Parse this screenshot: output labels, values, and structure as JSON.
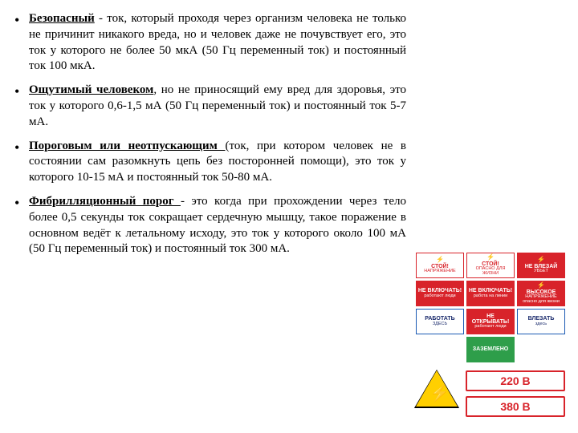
{
  "items": [
    {
      "term": "Безопасный",
      "rest": " - ток, который проходя через организм человека не только не причинит никакого вреда, но и человек даже не почувствует его, это ток у которого не более 50 мкА (50 Гц переменный ток) и постоянный ток 100 мкА."
    },
    {
      "term": "Ощутимый человеком",
      "rest": ", но не приносящий ему вред для здоровья, это ток у которого 0,6-1,5 мА (50 Гц переменный ток) и постоянный ток 5-7 мА."
    },
    {
      "term": "Пороговым или неотпускающим ",
      "rest": "(ток, при котором человек не в состоянии сам разомкнуть цепь без посторонней помощи), это ток у которого 10-15 мА и постоянный ток 50-80 мА."
    },
    {
      "term": "Фибрилляционный порог ",
      "rest": "- это когда при прохождении через тело более 0,5 секунды ток сокращает сердечную мышцу, такое поражение в основном ведёт к летальному исходу, это ток у которого около 100 мА (50 Гц переменный ток) и постоянный ток 300 мА."
    }
  ],
  "signs": [
    {
      "cls": "red-w",
      "bolt": true,
      "t1": "СТОЙ!",
      "t2": "НАПРЯЖЕНИЕ"
    },
    {
      "cls": "red-w",
      "bolt": true,
      "t1": "СТОЙ!",
      "t2": "ОПАСНО ДЛЯ ЖИЗНИ"
    },
    {
      "cls": "red-r",
      "bolt": true,
      "t1": "НЕ ВЛЕЗАЙ",
      "t2": "УБЬЕТ"
    },
    {
      "cls": "red-r",
      "bolt": false,
      "t1": "НЕ ВКЛЮЧАТЬ!",
      "t2": "работают люди"
    },
    {
      "cls": "red-r",
      "bolt": false,
      "t1": "НЕ ВКЛЮЧАТЬ!",
      "t2": "работа на линии"
    },
    {
      "cls": "red-r",
      "bolt": true,
      "t1": "ВЫСОКОЕ",
      "t2": "НАПРЯЖЕНИЕ опасно для жизни"
    },
    {
      "cls": "blue-w",
      "bolt": false,
      "t1": "РАБОТАТЬ",
      "t2": "ЗДЕСЬ"
    },
    {
      "cls": "red-r",
      "bolt": false,
      "t1": "НЕ ОТКРЫВАТЬ!",
      "t2": "работают люди"
    },
    {
      "cls": "blue-w",
      "bolt": false,
      "t1": "ВЛЕЗАТЬ",
      "t2": "здесь"
    },
    {
      "cls": "green",
      "bolt": false,
      "t1": "ЗАЗЕМЛЕНО",
      "t2": ""
    }
  ],
  "volts": [
    "220 В",
    "380 В"
  ]
}
